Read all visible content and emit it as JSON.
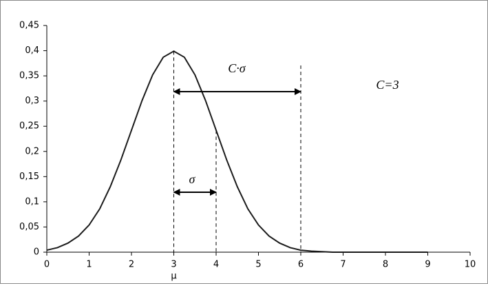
{
  "chart_data": {
    "type": "line",
    "x": [
      0,
      0.25,
      0.5,
      0.75,
      1,
      1.25,
      1.5,
      1.75,
      2,
      2.25,
      2.5,
      2.75,
      3,
      3.25,
      3.5,
      3.75,
      4,
      4.25,
      4.5,
      4.75,
      5,
      5.25,
      5.5,
      5.75,
      6,
      6.25,
      6.5,
      6.75,
      7,
      7.25,
      7.5,
      7.75,
      8,
      8.25,
      8.5,
      8.75,
      9
    ],
    "series": [
      {
        "color": "#1a1a1a",
        "values": [
          0.004,
          0.009,
          0.018,
          0.032,
          0.054,
          0.086,
          0.13,
          0.183,
          0.242,
          0.301,
          0.352,
          0.387,
          0.399,
          0.387,
          0.352,
          0.301,
          0.242,
          0.183,
          0.13,
          0.086,
          0.054,
          0.032,
          0.018,
          0.009,
          0.004,
          0.002,
          0.001,
          0,
          0,
          0,
          0,
          0,
          0,
          0,
          0,
          0,
          0
        ]
      }
    ],
    "xlim": [
      0,
      10
    ],
    "xticks": [
      0,
      1,
      2,
      3,
      4,
      5,
      6,
      7,
      8,
      9,
      10
    ],
    "ylim": [
      0,
      0.45
    ],
    "yticks": [
      0,
      {
        "value": 0.05,
        "label": "0,05"
      },
      {
        "value": 0.1,
        "label": "0,1"
      },
      {
        "value": 0.15,
        "label": "0,15"
      },
      {
        "value": 0.2,
        "label": "0,2"
      },
      {
        "value": 0.25,
        "label": "0,25"
      },
      {
        "value": 0.3,
        "label": "0,3"
      },
      {
        "value": 0.35,
        "label": "0,35"
      },
      {
        "value": 0.4,
        "label": "0,4"
      },
      {
        "value": 0.45,
        "label": "0,45"
      }
    ],
    "grid": false,
    "mu": 3,
    "sigma": 1,
    "C": 3,
    "annotations": {
      "mu": "μ",
      "sigma": "σ",
      "c_sigma": "C·σ",
      "c_value": "C=3"
    }
  }
}
